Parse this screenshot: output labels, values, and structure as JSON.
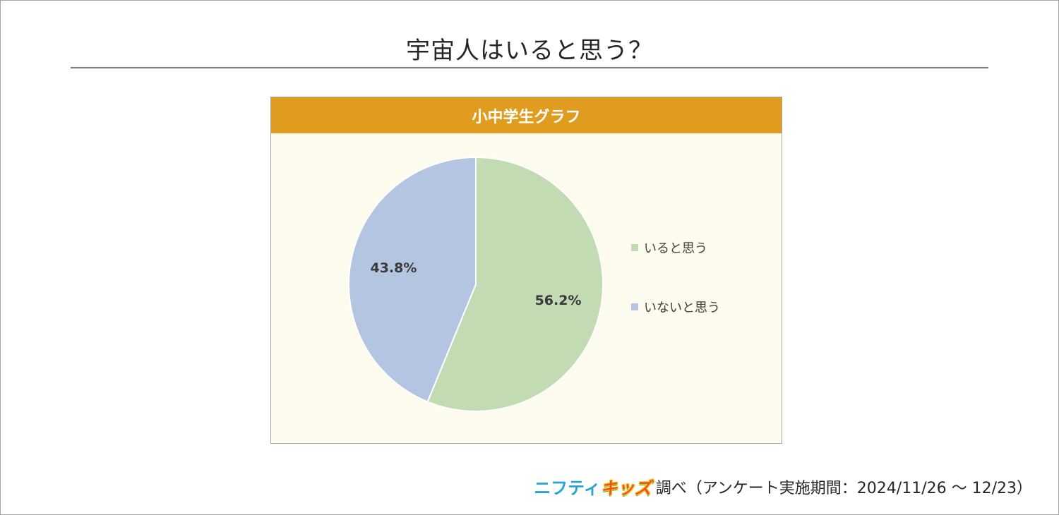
{
  "page": {
    "title": "宇宙人はいると思う？",
    "footer_brand_a": "ニフティ",
    "footer_brand_b": "キッズ",
    "footer_note": "調べ（アンケート実施期間：2024/11/26 〜 12/23）"
  },
  "colors": {
    "header": "#e09c1e",
    "panel_background": "#fdfbee",
    "series_yes": "#c3dbb3",
    "series_no": "#b4c5e2"
  },
  "chart_data": {
    "type": "pie",
    "title": "小中学生グラフ",
    "categories": [
      "いると思う",
      "いないと思う"
    ],
    "values": [
      56.2,
      43.8
    ],
    "labels": [
      "56.2%",
      "43.8%"
    ],
    "colors": [
      "#c3dbb3",
      "#b4c5e2"
    ],
    "legend_position": "right",
    "start_angle": "12 o'clock, clockwise"
  }
}
